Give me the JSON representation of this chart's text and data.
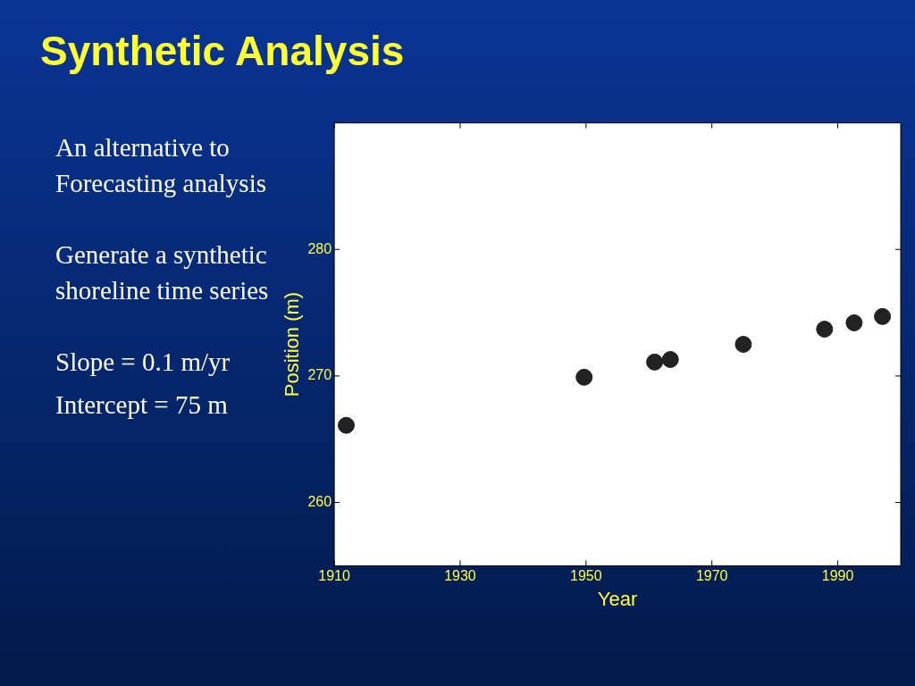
{
  "chart_data": {
    "type": "scatter",
    "title": "Synthetic Analysis",
    "annotations": [
      "An alternative to Forecasting analysis",
      "Generate a synthetic shoreline time series",
      "Slope = 0.1 m/yr",
      "Intercept = 75 m"
    ],
    "xlabel": "Year",
    "ylabel": "Position (m)",
    "x": [
      1911.9,
      1949.7,
      1960.9,
      1963.4,
      1975.0,
      1987.9,
      1992.6,
      1997.1
    ],
    "values": [
      266.1,
      269.9,
      271.1,
      271.3,
      272.5,
      273.7,
      274.2,
      274.7
    ],
    "color": "#222222",
    "marker": "circle",
    "xlim": [
      1910,
      2000
    ],
    "xticks": [
      1910,
      1930,
      1950,
      1970,
      1990
    ],
    "ylim": [
      255,
      290
    ],
    "yticks": [
      260,
      270,
      280
    ],
    "grid": false,
    "legend": false
  }
}
